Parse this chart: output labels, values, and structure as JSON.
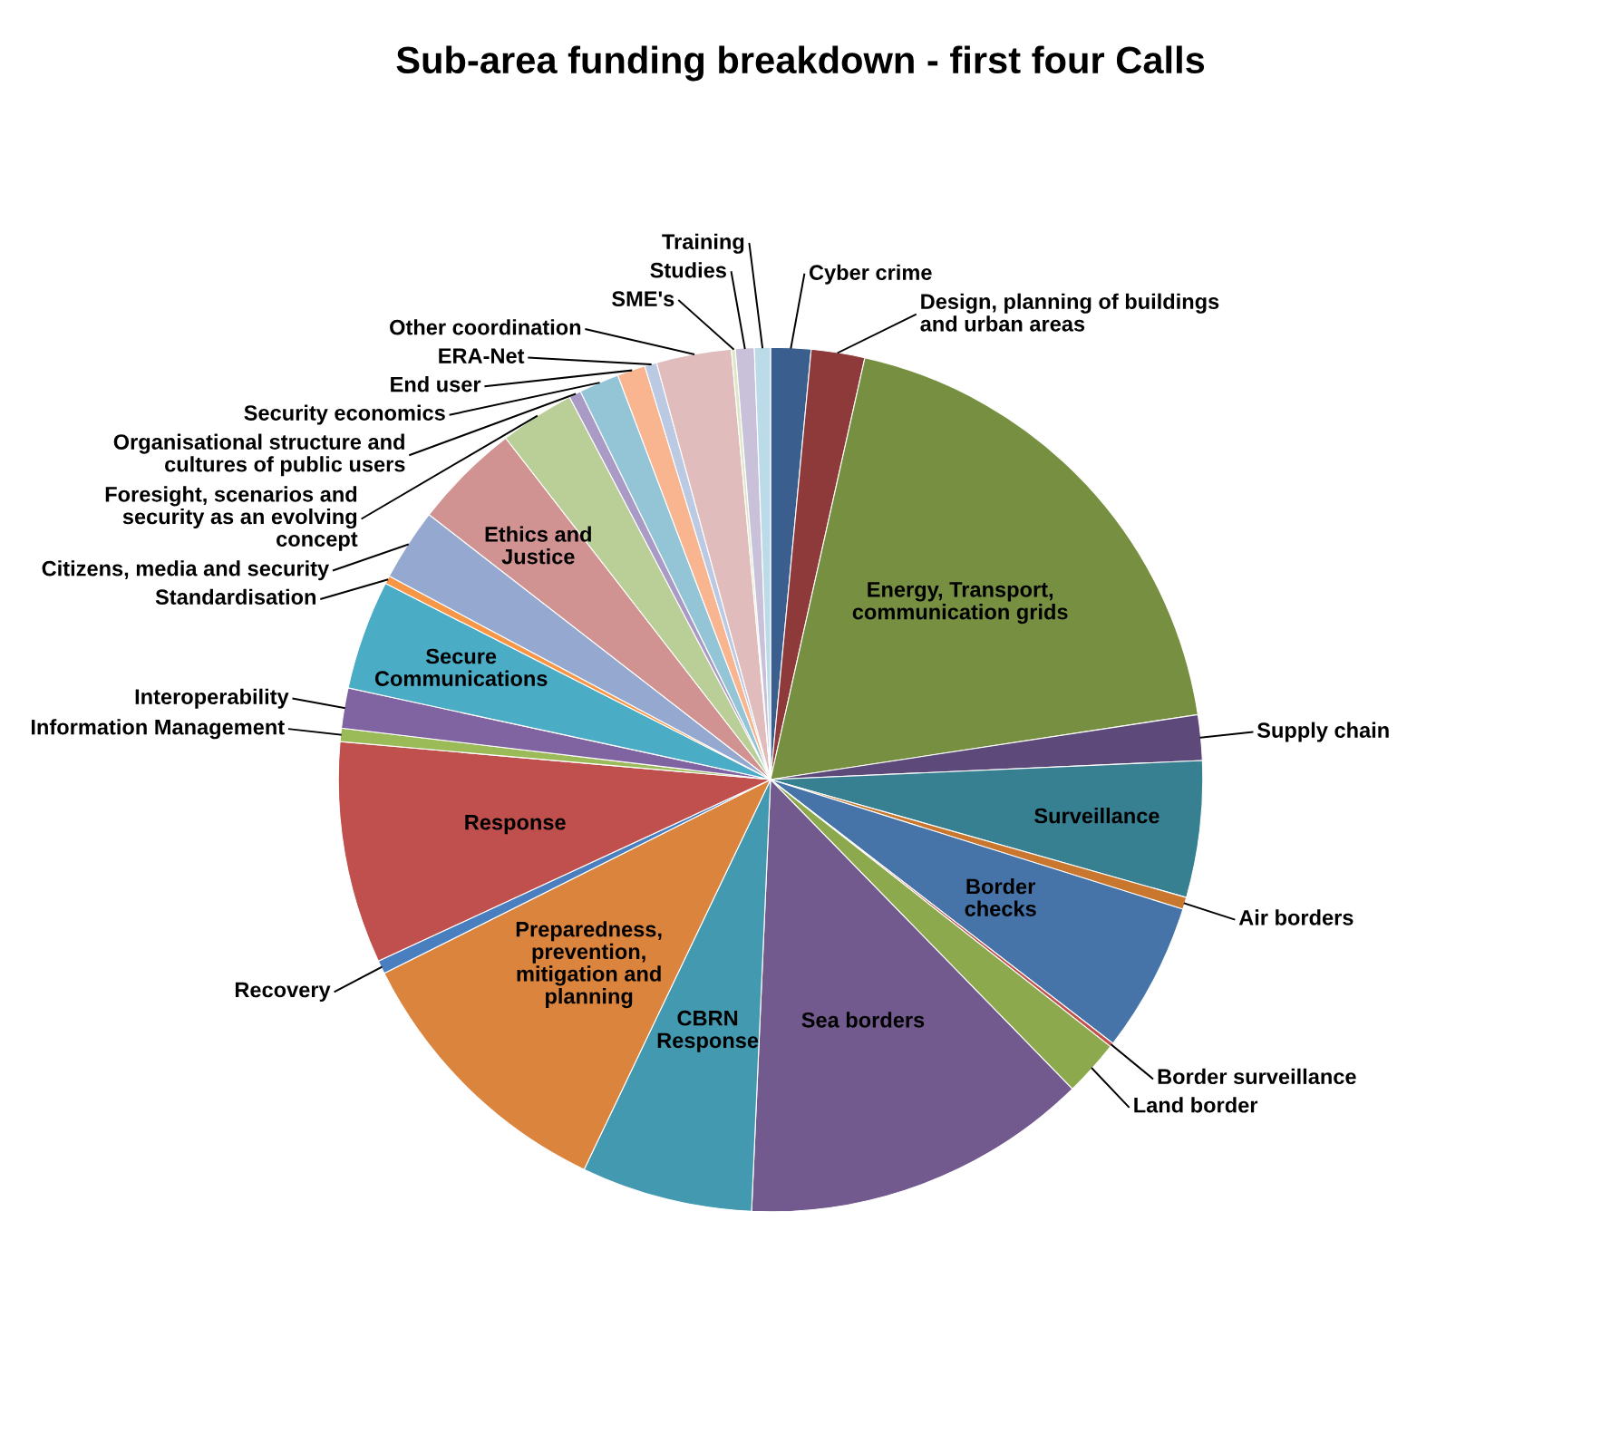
{
  "chart_data": {
    "type": "pie",
    "title": "Sub-area funding breakdown - first four Calls",
    "categories": [
      "Cyber crime",
      "Design, planning of buildings and urban areas",
      "Energy, Transport, communication grids",
      "Supply chain",
      "Surveillance",
      "Air borders",
      "Border checks",
      "Border surveillance",
      "Land border",
      "Sea borders",
      "CBRN Response",
      "Preparedness, prevention, mitigation and planning",
      "Recovery",
      "Response",
      "Information Management",
      "Interoperability",
      "Secure Communications",
      "Standardisation",
      "Citizens, media and security",
      "Ethics and Justice",
      "Foresight, scenarios and security as an evolving concept",
      "Organisational structure and cultures of public users",
      "Security economics",
      "End user",
      "ERA-Net",
      "Other coordination",
      "SME's",
      "Studies",
      "Training"
    ],
    "values": [
      1.5,
      2.0,
      19.1,
      1.7,
      5.1,
      0.45,
      5.6,
      0.15,
      2.1,
      13.0,
      6.4,
      10.5,
      0.5,
      8.3,
      0.5,
      1.5,
      4.1,
      0.3,
      2.7,
      4.0,
      2.8,
      0.45,
      1.5,
      1.05,
      0.45,
      2.8,
      0.15,
      0.7,
      0.6
    ],
    "colors": [
      "#3a5f8f",
      "#8e3a3a",
      "#768f41",
      "#5e4a7a",
      "#378092",
      "#c9762f",
      "#4673a8",
      "#c0504d",
      "#8ca94d",
      "#725a8e",
      "#4399b0",
      "#db843d",
      "#4a7fbf",
      "#c0504d",
      "#9bbb59",
      "#8064a2",
      "#4bacc6",
      "#f79646",
      "#95a9d0",
      "#d19392",
      "#bacf97",
      "#aa9bc6",
      "#93c5d7",
      "#f8b58f",
      "#bcc9e2",
      "#e0bcbd",
      "#dee8c6",
      "#c9c0da",
      "#bcdbe8"
    ],
    "legend": false
  }
}
